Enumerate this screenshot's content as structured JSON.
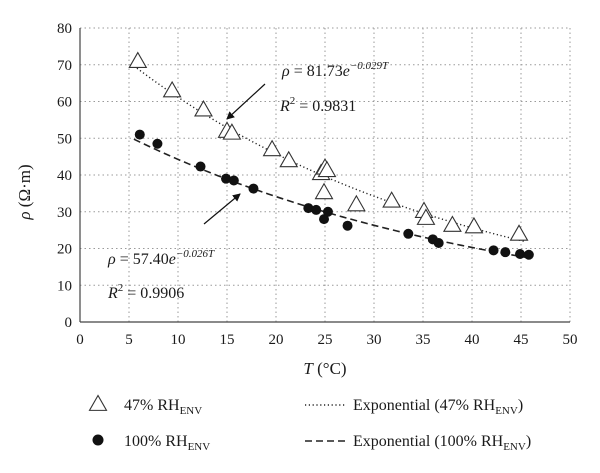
{
  "chart_data": {
    "type": "scatter",
    "xlabel": "T (°C)",
    "ylabel": "ρ (Ω·m)",
    "xlim": [
      0,
      50
    ],
    "ylim": [
      0,
      80
    ],
    "x_ticks": [
      0,
      5,
      10,
      15,
      20,
      25,
      30,
      35,
      40,
      45,
      50
    ],
    "y_ticks": [
      0,
      10,
      20,
      30,
      40,
      50,
      60,
      70,
      80
    ],
    "grid": "dotted",
    "legend_position": "bottom",
    "series": [
      {
        "name": "47% RH_ENV",
        "legend_main": "47% RH",
        "legend_sub": "ENV",
        "marker": "open-triangle",
        "x": [
          5.9,
          9.4,
          12.6,
          15.0,
          15.5,
          19.6,
          21.3,
          24.6,
          24.9,
          25.0,
          25.2,
          28.2,
          31.8,
          35.1,
          35.3,
          38.0,
          40.2,
          44.8
        ],
        "y": [
          71.0,
          63.0,
          57.8,
          52.0,
          51.5,
          47.0,
          44.0,
          40.5,
          35.3,
          42.0,
          41.3,
          32.0,
          33.0,
          30.2,
          28.3,
          26.4,
          26.0,
          24.0
        ]
      },
      {
        "name": "100% RH_ENV",
        "legend_main": "100% RH",
        "legend_sub": "ENV",
        "marker": "filled-circle",
        "x": [
          6.1,
          7.9,
          12.3,
          14.9,
          15.7,
          17.7,
          23.3,
          24.1,
          24.9,
          25.3,
          27.3,
          33.5,
          36.0,
          36.6,
          42.2,
          43.4,
          44.9,
          45.8
        ],
        "y": [
          51.0,
          48.5,
          42.3,
          39.0,
          38.5,
          36.3,
          31.0,
          30.5,
          28.0,
          30.0,
          26.2,
          24.0,
          22.5,
          21.5,
          19.5,
          19.0,
          18.5,
          18.3
        ]
      }
    ],
    "trendlines": [
      {
        "name": "Exponential (47% RH_ENV)",
        "legend_main": "Exponential (47% RH",
        "legend_sub": "ENV",
        "legend_tail": ")",
        "style": "dotted",
        "a": 81.73,
        "b": -0.029,
        "x_range": [
          5.5,
          45.5
        ],
        "eq_prefix": "ρ = 81.73",
        "eq_base": "e",
        "eq_exp": "−0.029T",
        "r2_prefix": "R",
        "r2_sup": "2",
        "r2_value": " = 0.9831"
      },
      {
        "name": "Exponential (100% RH_ENV)",
        "legend_main": "Exponential (100% RH",
        "legend_sub": "ENV",
        "legend_tail": ")",
        "style": "dashed",
        "a": 57.4,
        "b": -0.026,
        "x_range": [
          5.5,
          46
        ],
        "eq_prefix": "ρ = 57.40",
        "eq_base": "e",
        "eq_exp": "−0.026T",
        "r2_prefix": "R",
        "r2_sup": "2",
        "r2_value": " = 0.9906"
      }
    ]
  }
}
